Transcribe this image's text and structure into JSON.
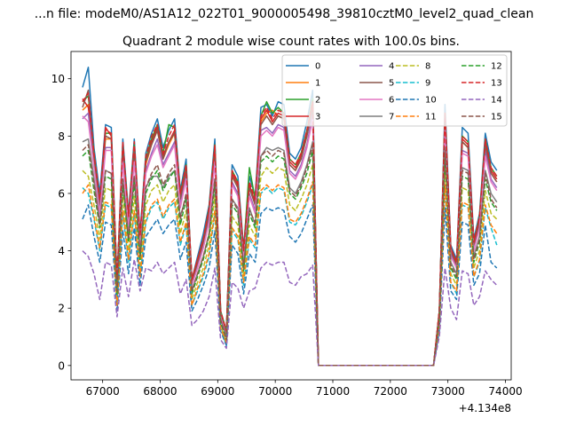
{
  "suptitle": "...n file: modeM0/AS1A12_022T01_9000005498_39810cztM0_level2_quad_clean",
  "chart_data": {
    "type": "line",
    "title": "Quadrant 2 module wise count rates with 100.0s bins.",
    "xlabel": "",
    "ylabel": "",
    "offset_text": "+4.134e8",
    "xlim": [
      66450,
      74100
    ],
    "ylim": [
      -0.5,
      10.95
    ],
    "xticks": [
      67000,
      68000,
      69000,
      70000,
      71000,
      72000,
      73000,
      74000
    ],
    "xtick_labels": [
      "67000",
      "68000",
      "69000",
      "70000",
      "71000",
      "72000",
      "73000",
      "74000"
    ],
    "yticks": [
      0,
      2,
      4,
      6,
      8,
      10
    ],
    "ytick_labels": [
      "0",
      "2",
      "4",
      "6",
      "8",
      "10"
    ],
    "grid": false,
    "legend": {
      "placement": "top-right",
      "columns": 4
    },
    "x": [
      66650,
      66750,
      66850,
      66950,
      67050,
      67150,
      67250,
      67350,
      67450,
      67550,
      67650,
      67750,
      67850,
      67950,
      68050,
      68150,
      68250,
      68350,
      68450,
      68550,
      68650,
      68750,
      68850,
      68950,
      69050,
      69150,
      69250,
      69350,
      69450,
      69550,
      69650,
      69750,
      69850,
      69950,
      70050,
      70150,
      70250,
      70350,
      70450,
      70550,
      70650,
      70750,
      70850,
      72750,
      72850,
      72950,
      73050,
      73150,
      73250,
      73350,
      73450,
      73550,
      73650,
      73750,
      73850
    ],
    "series": [
      {
        "name": "0",
        "color": "#1f77b4",
        "dash": "solid",
        "values": [
          9.7,
          10.4,
          7.6,
          6.0,
          8.4,
          8.3,
          3.0,
          7.9,
          5.3,
          7.9,
          4.6,
          7.4,
          8.1,
          8.6,
          7.6,
          8.2,
          8.6,
          6.1,
          7.2,
          3.0,
          3.8,
          4.6,
          5.6,
          7.9,
          1.9,
          1.2,
          7.0,
          6.6,
          4.1,
          6.6,
          5.9,
          9.0,
          9.1,
          8.7,
          9.2,
          9.1,
          7.4,
          7.2,
          7.6,
          8.5,
          9.6,
          0.0,
          0.0,
          0.0,
          1.9,
          9.1,
          4.2,
          3.7,
          8.3,
          8.1,
          4.4,
          5.3,
          8.1,
          7.1,
          6.8
        ]
      },
      {
        "name": "1",
        "color": "#ff7f0e",
        "dash": "solid",
        "values": [
          8.9,
          9.1,
          7.2,
          5.5,
          7.9,
          7.9,
          2.9,
          7.5,
          5.0,
          7.5,
          4.3,
          7.0,
          7.7,
          8.2,
          7.2,
          7.7,
          8.1,
          5.8,
          6.8,
          2.9,
          3.6,
          4.3,
          5.3,
          7.5,
          1.8,
          1.1,
          6.6,
          6.2,
          3.9,
          6.2,
          5.6,
          8.5,
          8.8,
          8.9,
          8.7,
          8.6,
          7.0,
          6.8,
          7.2,
          8.0,
          9.1,
          0.0,
          0.0,
          0.0,
          1.8,
          8.6,
          4.0,
          3.5,
          7.8,
          7.6,
          4.2,
          5.0,
          7.7,
          6.7,
          6.4
        ]
      },
      {
        "name": "2",
        "color": "#2ca02c",
        "dash": "solid",
        "values": [
          9.2,
          9.4,
          7.4,
          5.7,
          8.1,
          8.1,
          3.0,
          7.7,
          5.2,
          7.7,
          4.4,
          7.2,
          7.9,
          8.4,
          7.4,
          8.4,
          8.3,
          6.0,
          7.0,
          3.0,
          3.7,
          4.4,
          5.5,
          7.7,
          1.9,
          1.2,
          6.8,
          6.4,
          4.0,
          6.9,
          5.8,
          8.7,
          9.2,
          8.8,
          9.0,
          8.8,
          7.2,
          7.0,
          7.4,
          8.2,
          9.3,
          0.0,
          0.0,
          0.0,
          1.9,
          8.8,
          4.1,
          3.6,
          8.0,
          7.8,
          4.3,
          5.2,
          7.9,
          6.9,
          6.6
        ]
      },
      {
        "name": "3",
        "color": "#d62728",
        "dash": "solid",
        "values": [
          9.3,
          9.0,
          7.3,
          5.6,
          8.3,
          8.0,
          2.9,
          7.6,
          5.1,
          7.6,
          4.4,
          7.1,
          7.8,
          8.3,
          7.3,
          7.8,
          8.2,
          5.9,
          6.9,
          3.0,
          3.7,
          4.4,
          5.4,
          7.6,
          1.8,
          1.1,
          6.7,
          6.3,
          4.0,
          6.3,
          5.7,
          8.6,
          8.9,
          8.5,
          8.8,
          8.7,
          7.1,
          6.9,
          7.3,
          8.1,
          9.2,
          0.0,
          0.0,
          0.0,
          1.9,
          8.7,
          4.1,
          3.6,
          7.9,
          7.7,
          4.3,
          5.1,
          7.8,
          6.8,
          6.5
        ]
      },
      {
        "name": "4",
        "color": "#9467bd",
        "dash": "solid",
        "values": [
          8.6,
          8.8,
          7.0,
          5.4,
          7.6,
          7.6,
          2.8,
          7.2,
          4.9,
          7.2,
          4.2,
          6.8,
          7.4,
          7.9,
          7.0,
          7.4,
          7.8,
          5.6,
          6.6,
          2.8,
          3.5,
          4.2,
          5.1,
          7.2,
          1.7,
          1.0,
          6.4,
          6.0,
          3.8,
          6.0,
          5.4,
          8.2,
          8.3,
          8.1,
          8.4,
          8.3,
          6.8,
          6.6,
          7.0,
          7.7,
          8.8,
          0.0,
          0.0,
          0.0,
          1.8,
          8.3,
          3.9,
          3.4,
          7.5,
          7.4,
          4.1,
          4.9,
          7.5,
          6.5,
          6.2
        ]
      },
      {
        "name": "5",
        "color": "#8c564b",
        "dash": "solid",
        "values": [
          9.0,
          9.6,
          7.2,
          5.6,
          8.0,
          7.9,
          2.9,
          7.6,
          5.1,
          7.5,
          4.3,
          7.1,
          7.7,
          8.2,
          7.2,
          7.8,
          8.1,
          5.8,
          6.8,
          2.9,
          3.6,
          4.3,
          5.3,
          7.5,
          1.8,
          1.1,
          6.6,
          6.2,
          3.9,
          6.2,
          5.6,
          8.4,
          8.7,
          8.4,
          8.7,
          8.6,
          7.0,
          6.8,
          7.2,
          8.0,
          9.0,
          0.0,
          0.0,
          0.0,
          1.8,
          8.6,
          4.0,
          3.5,
          7.8,
          7.6,
          4.2,
          5.0,
          7.7,
          6.7,
          6.4
        ]
      },
      {
        "name": "6",
        "color": "#e377c2",
        "dash": "solid",
        "values": [
          8.7,
          8.5,
          6.9,
          5.3,
          7.5,
          7.5,
          2.8,
          7.1,
          4.8,
          7.1,
          4.1,
          6.7,
          7.3,
          7.7,
          6.9,
          7.3,
          7.7,
          5.5,
          6.5,
          2.8,
          3.4,
          4.1,
          5.0,
          7.1,
          1.7,
          1.0,
          6.3,
          5.9,
          3.7,
          5.9,
          5.3,
          8.0,
          8.2,
          8.0,
          8.3,
          8.2,
          6.7,
          6.5,
          6.9,
          7.6,
          8.6,
          0.0,
          0.0,
          0.0,
          1.7,
          8.2,
          3.8,
          3.4,
          7.4,
          7.3,
          4.0,
          4.8,
          7.3,
          6.4,
          6.1
        ]
      },
      {
        "name": "7",
        "color": "#7f7f7f",
        "dash": "solid",
        "values": [
          7.8,
          7.9,
          6.5,
          5.0,
          6.8,
          6.7,
          2.7,
          6.5,
          4.5,
          6.6,
          3.9,
          6.2,
          6.6,
          6.6,
          6.2,
          6.6,
          6.8,
          5.2,
          5.9,
          2.6,
          3.2,
          3.8,
          4.6,
          6.5,
          1.6,
          1.0,
          5.8,
          5.5,
          3.5,
          5.5,
          4.9,
          7.3,
          7.6,
          7.5,
          7.6,
          7.5,
          6.2,
          6.0,
          6.4,
          7.0,
          7.8,
          0.0,
          0.0,
          0.0,
          1.6,
          7.6,
          3.6,
          3.2,
          6.9,
          6.8,
          3.8,
          4.5,
          6.8,
          6.0,
          5.7
        ]
      },
      {
        "name": "8",
        "color": "#bcbd22",
        "dash": "dashed",
        "values": [
          6.8,
          6.6,
          5.6,
          4.4,
          6.2,
          6.1,
          2.3,
          5.9,
          4.0,
          5.9,
          3.4,
          5.6,
          6.1,
          6.3,
          5.7,
          6.1,
          6.3,
          4.6,
          5.4,
          2.3,
          2.9,
          3.4,
          4.2,
          5.9,
          1.4,
          0.8,
          5.2,
          4.9,
          3.1,
          4.9,
          4.5,
          6.6,
          6.9,
          6.7,
          6.9,
          6.8,
          5.6,
          5.4,
          5.8,
          6.3,
          7.0,
          0.0,
          0.0,
          0.0,
          1.5,
          6.9,
          3.2,
          2.8,
          6.2,
          6.1,
          3.4,
          4.0,
          6.1,
          5.3,
          5.1
        ]
      },
      {
        "name": "9",
        "color": "#17becf",
        "dash": "dashed",
        "values": [
          6.2,
          6.0,
          5.1,
          4.0,
          5.6,
          5.5,
          2.1,
          5.3,
          3.6,
          5.3,
          3.1,
          5.0,
          5.5,
          5.7,
          5.1,
          5.5,
          5.7,
          4.2,
          4.9,
          2.1,
          2.6,
          3.1,
          3.8,
          5.3,
          1.3,
          0.7,
          4.7,
          4.4,
          2.8,
          4.4,
          4.1,
          6.0,
          6.2,
          6.0,
          6.2,
          6.1,
          5.0,
          4.9,
          5.2,
          5.7,
          6.3,
          0.0,
          0.0,
          0.0,
          1.3,
          6.2,
          2.9,
          2.5,
          5.6,
          5.5,
          3.1,
          3.6,
          5.5,
          4.8,
          4.2
        ]
      },
      {
        "name": "10",
        "color": "#1f77b4",
        "dash": "dashed",
        "values": [
          5.1,
          5.6,
          4.5,
          3.6,
          5.0,
          4.9,
          1.9,
          4.7,
          3.2,
          4.8,
          2.8,
          4.5,
          4.8,
          5.1,
          4.6,
          4.9,
          5.1,
          3.7,
          4.3,
          1.9,
          2.3,
          2.8,
          3.4,
          4.7,
          1.2,
          0.7,
          4.2,
          3.9,
          2.5,
          3.9,
          3.6,
          5.3,
          5.5,
          5.4,
          5.5,
          5.4,
          4.5,
          4.3,
          4.6,
          5.1,
          5.6,
          0.0,
          0.0,
          0.0,
          1.2,
          5.5,
          2.6,
          2.3,
          5.0,
          4.9,
          2.8,
          3.2,
          4.9,
          3.6,
          3.4
        ]
      },
      {
        "name": "11",
        "color": "#ff7f0e",
        "dash": "dashed",
        "values": [
          6.0,
          6.3,
          5.2,
          4.1,
          5.7,
          5.6,
          2.1,
          5.4,
          3.7,
          5.4,
          3.1,
          5.1,
          5.6,
          5.8,
          5.2,
          5.6,
          5.8,
          4.3,
          5.0,
          2.1,
          2.7,
          3.2,
          3.9,
          5.4,
          1.3,
          0.8,
          4.8,
          4.5,
          2.9,
          4.5,
          4.2,
          6.1,
          6.3,
          6.1,
          6.3,
          6.2,
          5.1,
          5.0,
          5.3,
          5.8,
          6.4,
          0.0,
          0.0,
          0.0,
          1.4,
          6.3,
          2.9,
          2.6,
          5.7,
          5.6,
          3.1,
          3.7,
          5.6,
          4.9,
          4.6
        ]
      },
      {
        "name": "12",
        "color": "#2ca02c",
        "dash": "dashed",
        "values": [
          7.3,
          7.5,
          6.1,
          4.8,
          6.6,
          6.5,
          2.5,
          6.3,
          4.3,
          6.4,
          3.7,
          6.0,
          6.5,
          6.8,
          6.1,
          6.5,
          6.8,
          4.9,
          5.8,
          2.5,
          3.1,
          3.7,
          4.5,
          6.3,
          1.5,
          0.9,
          5.6,
          5.3,
          3.3,
          5.3,
          4.8,
          7.1,
          7.3,
          7.1,
          7.3,
          7.2,
          6.0,
          5.8,
          6.2,
          6.7,
          7.5,
          0.0,
          0.0,
          0.0,
          1.6,
          7.3,
          3.4,
          3.0,
          6.6,
          6.5,
          3.6,
          4.3,
          6.5,
          5.7,
          5.4
        ]
      },
      {
        "name": "13",
        "color": "#d62728",
        "dash": "dashed",
        "values": [
          9.2,
          9.5,
          7.4,
          5.8,
          8.2,
          8.1,
          3.0,
          7.8,
          5.2,
          7.8,
          4.5,
          7.3,
          8.0,
          8.4,
          7.4,
          8.0,
          8.4,
          6.0,
          7.0,
          3.0,
          3.7,
          4.4,
          5.5,
          7.7,
          1.9,
          1.2,
          6.8,
          6.4,
          4.0,
          6.4,
          5.8,
          8.7,
          9.0,
          8.6,
          8.9,
          8.8,
          7.2,
          7.0,
          7.4,
          8.2,
          9.2,
          0.0,
          0.0,
          0.0,
          1.9,
          8.8,
          4.1,
          3.6,
          8.0,
          7.8,
          4.3,
          5.2,
          7.9,
          6.9,
          6.6
        ]
      },
      {
        "name": "14",
        "color": "#9467bd",
        "dash": "dashed",
        "values": [
          4.0,
          3.8,
          3.2,
          2.3,
          3.6,
          3.5,
          1.7,
          3.4,
          2.4,
          3.7,
          2.6,
          3.4,
          3.3,
          3.6,
          3.2,
          3.4,
          3.6,
          2.5,
          3.0,
          1.4,
          1.6,
          1.9,
          2.4,
          3.4,
          0.9,
          0.6,
          2.9,
          2.7,
          2.0,
          2.6,
          2.7,
          3.4,
          3.6,
          3.5,
          3.6,
          3.6,
          2.9,
          2.8,
          3.1,
          3.2,
          3.5,
          0.0,
          0.0,
          0.0,
          1.0,
          3.4,
          2.0,
          1.6,
          3.3,
          3.2,
          2.1,
          2.4,
          3.3,
          3.0,
          2.8
        ]
      },
      {
        "name": "15",
        "color": "#8c564b",
        "dash": "dashed",
        "values": [
          7.5,
          7.7,
          6.3,
          4.9,
          6.8,
          6.7,
          2.6,
          6.5,
          4.4,
          6.6,
          3.8,
          6.2,
          6.7,
          7.0,
          6.3,
          6.7,
          7.0,
          5.1,
          6.0,
          2.6,
          3.2,
          3.8,
          4.6,
          6.5,
          1.6,
          0.9,
          5.8,
          5.4,
          3.4,
          5.4,
          5.0,
          7.3,
          7.5,
          7.3,
          7.5,
          7.4,
          6.1,
          5.9,
          6.3,
          6.9,
          7.7,
          0.0,
          0.0,
          0.0,
          1.6,
          7.5,
          3.5,
          3.1,
          6.8,
          6.7,
          3.7,
          4.4,
          6.7,
          5.8,
          5.5
        ]
      }
    ]
  }
}
